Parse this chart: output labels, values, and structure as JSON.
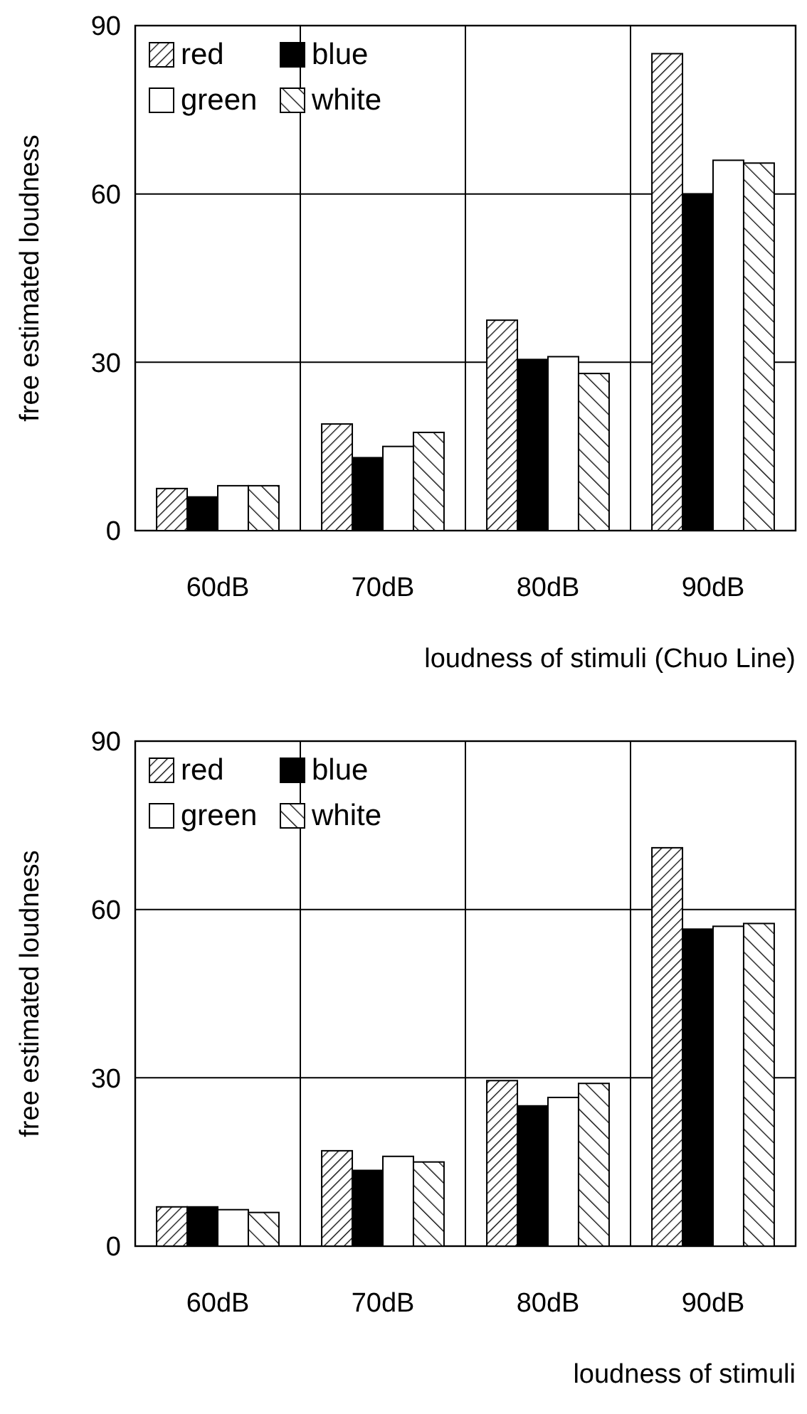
{
  "chart_data": [
    {
      "type": "bar",
      "categories": [
        "60dB",
        "70dB",
        "80dB",
        "90dB"
      ],
      "xlabel": "loudness of stimuli (Chuo Line)",
      "ylabel": "free estimated loudness",
      "ylim": [
        0,
        90
      ],
      "yticks": [
        0,
        30,
        60,
        90
      ],
      "grid": true,
      "legend": "top left",
      "series": [
        {
          "name": "red",
          "color": "#000000",
          "values": [
            7.5,
            19,
            37.5,
            85
          ]
        },
        {
          "name": "blue",
          "color": "#000000",
          "values": [
            6,
            13,
            30.5,
            60
          ]
        },
        {
          "name": "green",
          "color": "#ffffff",
          "values": [
            8,
            15,
            31,
            66
          ]
        },
        {
          "name": "white",
          "color": "#000000",
          "values": [
            8,
            17.5,
            28,
            65.5
          ]
        }
      ]
    },
    {
      "type": "bar",
      "categories": [
        "60dB",
        "70dB",
        "80dB",
        "90dB"
      ],
      "xlabel": "loudness of stimuli",
      "ylabel": "free estimated loudness",
      "ylim": [
        0,
        90
      ],
      "yticks": [
        0,
        30,
        60,
        90
      ],
      "grid": true,
      "legend": "top left",
      "series": [
        {
          "name": "red",
          "color": "#000000",
          "values": [
            7,
            17,
            29.5,
            71
          ]
        },
        {
          "name": "blue",
          "color": "#000000",
          "values": [
            7,
            13.5,
            25,
            56.5
          ]
        },
        {
          "name": "green",
          "color": "#ffffff",
          "values": [
            6.5,
            16,
            26.5,
            57
          ]
        },
        {
          "name": "white",
          "color": "#000000",
          "values": [
            6,
            15,
            29,
            57.5
          ]
        }
      ]
    }
  ]
}
